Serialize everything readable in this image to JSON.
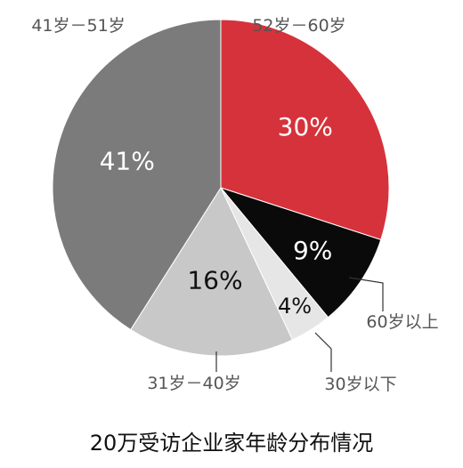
{
  "chart_data": {
    "type": "pie",
    "title": "20万受访企业家年龄分布情况",
    "slices": [
      {
        "label": "52岁－60岁",
        "value": 30,
        "value_label": "30%",
        "color": "#d6323b",
        "text_color": "#ffffff"
      },
      {
        "label": "60岁以上",
        "value": 9,
        "value_label": "9%",
        "color": "#0a0a0a",
        "text_color": "#ffffff"
      },
      {
        "label": "30岁以下",
        "value": 4,
        "value_label": "4%",
        "color": "#e6e6e6",
        "text_color": "#111111"
      },
      {
        "label": "31岁－40岁",
        "value": 16,
        "value_label": "16%",
        "color": "#c8c8c8",
        "text_color": "#111111"
      },
      {
        "label": "41岁－51岁",
        "value": 41,
        "value_label": "41%",
        "color": "#7b7b7b",
        "text_color": "#ffffff"
      }
    ]
  }
}
